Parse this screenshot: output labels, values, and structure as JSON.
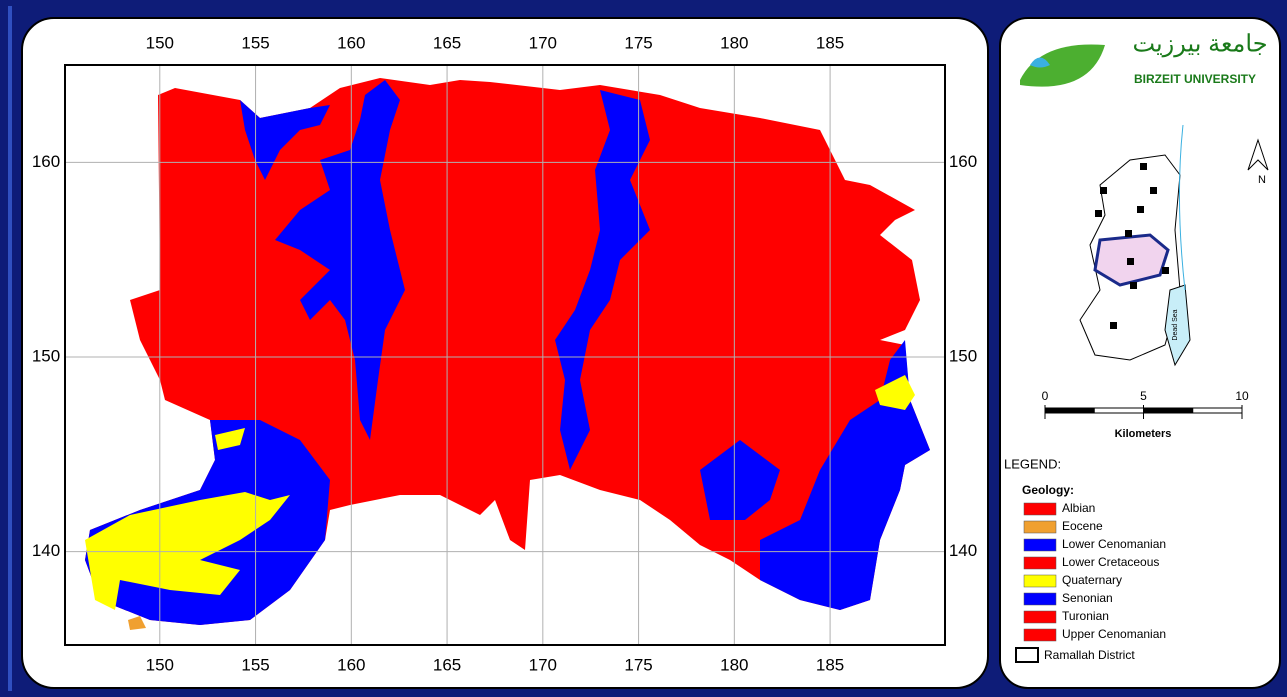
{
  "map": {
    "xlim": [
      145.05,
      191.0
    ],
    "ylim": [
      135.2,
      165.0
    ],
    "xticks": [
      150,
      155,
      160,
      165,
      170,
      175,
      180,
      185
    ],
    "yticks": [
      160,
      150,
      140
    ],
    "grid": true
  },
  "header": {
    "university": "BIRZEIT UNIVERSITY",
    "university_arabic": "جامعة بيرزيت"
  },
  "north_arrow": {
    "label": "N"
  },
  "inset": {
    "label": "Dead Sea"
  },
  "scale_bar": {
    "ticks": [
      0,
      5,
      10
    ],
    "unit": "Kilometers"
  },
  "legend": {
    "title": "LEGEND:",
    "subtitle": "Geology:",
    "items": [
      {
        "label": "Albian",
        "color": "#ff0000"
      },
      {
        "label": "Eocene",
        "color": "#f0a030"
      },
      {
        "label": "Lower Cenomanian",
        "color": "#0000ff"
      },
      {
        "label": "Lower Cretaceous",
        "color": "#ff0000"
      },
      {
        "label": "Quaternary",
        "color": "#ffff00"
      },
      {
        "label": "Senonian",
        "color": "#0000ff"
      },
      {
        "label": "Turonian",
        "color": "#ff0000"
      },
      {
        "label": "Upper Cenomanian",
        "color": "#ff0000"
      }
    ],
    "boundary": {
      "label": "Ramallah District"
    }
  }
}
